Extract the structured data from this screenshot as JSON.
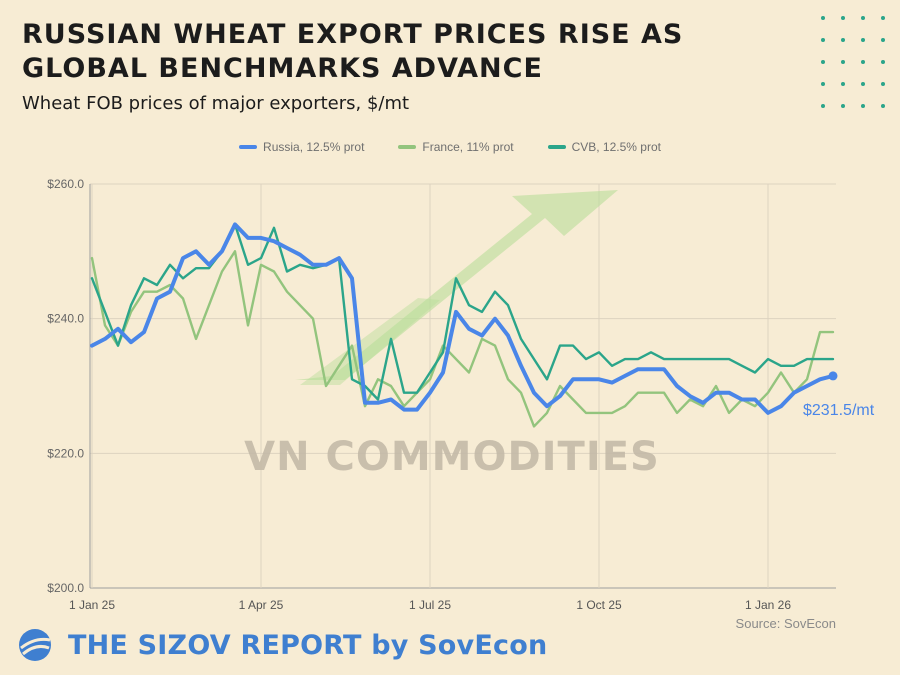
{
  "header": {
    "title": "RUSSIAN WHEAT EXPORT PRICES RISE AS GLOBAL BENCHMARKS ADVANCE",
    "subtitle": "Wheat FOB prices of major exporters, $/mt"
  },
  "watermark": "VN COMMODITIES",
  "source": "Source: SovEcon",
  "footer": {
    "brand": "THE SIZOV REPORT by SovEcon",
    "logo_icon": "globe-logo-icon"
  },
  "colors": {
    "russia": "#4a86e8",
    "france": "#93c47d",
    "cvb": "#2ba58a",
    "background": "#f7ecd4",
    "arrow": "#b9dd9a"
  },
  "chart_data": {
    "type": "line",
    "x_ticks": [
      "1 Jan 25",
      "1 Apr 25",
      "1 Jul 25",
      "1 Oct 25",
      "1 Jan 26"
    ],
    "x_tick_weeks": [
      0,
      13,
      26,
      39,
      52
    ],
    "y_ticks": [
      "$200.0",
      "$220.0",
      "$240.0",
      "$260.0"
    ],
    "y_tick_values": [
      200,
      220,
      240,
      260
    ],
    "ylim": [
      200,
      260
    ],
    "xlim_weeks": [
      0,
      57
    ],
    "grid": true,
    "legend_position": "top-center",
    "annotation": "$231.5/mt",
    "series": [
      {
        "name": "Russia, 12.5% prot",
        "key": "russia",
        "x_weeks": [
          0,
          1,
          2,
          3,
          4,
          5,
          6,
          7,
          8,
          9,
          10,
          11,
          12,
          13,
          14,
          15,
          16,
          17,
          18,
          19,
          20,
          21,
          22,
          23,
          24,
          25,
          26,
          27,
          28,
          29,
          30,
          31,
          32,
          33,
          34,
          35,
          36,
          37,
          38,
          39,
          40,
          41,
          42,
          43,
          44,
          45,
          46,
          47,
          48,
          49,
          50,
          51,
          52,
          53,
          54,
          55,
          56,
          57
        ],
        "values": [
          236,
          237,
          238.5,
          236.5,
          238,
          243,
          244,
          249,
          250,
          248,
          250,
          254,
          252,
          252,
          251.5,
          250.5,
          249.5,
          248,
          248,
          249,
          246,
          227.5,
          227.5,
          228,
          226.5,
          226.5,
          229,
          232,
          241,
          238.5,
          237.5,
          240,
          237.5,
          233,
          229,
          227,
          228.5,
          231,
          231,
          231,
          230.5,
          231.5,
          232.5,
          232.5,
          232.5,
          230,
          228.5,
          227.5,
          229,
          229,
          228,
          228,
          226,
          227,
          229,
          230,
          231,
          231.5
        ]
      },
      {
        "name": "France, 11% prot",
        "key": "france",
        "x_weeks": [
          0,
          1,
          2,
          3,
          4,
          5,
          6,
          7,
          8,
          9,
          10,
          11,
          12,
          13,
          14,
          15,
          16,
          17,
          18,
          19,
          20,
          21,
          22,
          23,
          24,
          25,
          26,
          27,
          28,
          29,
          30,
          31,
          32,
          33,
          34,
          35,
          36,
          37,
          38,
          39,
          40,
          41,
          42,
          43,
          44,
          45,
          46,
          47,
          48,
          49,
          50,
          51,
          52,
          53,
          54,
          55,
          56,
          57
        ],
        "values": [
          249,
          239,
          236,
          241,
          244,
          244,
          245,
          243,
          237,
          242,
          247,
          250,
          239,
          248,
          247,
          244,
          242,
          240,
          230,
          233,
          236,
          227,
          231,
          230,
          227,
          229,
          231,
          236,
          234,
          232,
          237,
          236,
          231,
          229,
          224,
          226,
          230,
          228,
          226,
          226,
          226,
          227,
          229,
          229,
          229,
          226,
          228,
          227,
          230,
          226,
          228,
          227,
          229,
          232,
          229,
          231,
          238,
          238
        ]
      },
      {
        "name": "CVB, 12.5% prot",
        "key": "cvb",
        "x_weeks": [
          0,
          1,
          2,
          3,
          4,
          5,
          6,
          7,
          8,
          9,
          10,
          11,
          12,
          13,
          14,
          15,
          16,
          17,
          18,
          19,
          20,
          21,
          22,
          23,
          24,
          25,
          26,
          27,
          28,
          29,
          30,
          31,
          32,
          33,
          34,
          35,
          36,
          37,
          38,
          39,
          40,
          41,
          42,
          43,
          44,
          45,
          46,
          47,
          48,
          49,
          50,
          51,
          52,
          53,
          54,
          55,
          56,
          57
        ],
        "values": [
          246,
          241,
          236,
          242,
          246,
          245,
          248,
          246,
          247.5,
          247.5,
          250,
          254,
          248,
          249,
          253.5,
          247,
          248,
          247.5,
          248,
          249,
          231,
          230,
          228,
          237,
          229,
          229,
          232,
          235,
          246,
          242,
          241,
          244,
          242,
          237,
          234,
          231,
          236,
          236,
          234,
          235,
          233,
          234,
          234,
          235,
          234,
          234,
          234,
          234,
          234,
          234,
          233,
          232,
          234,
          233,
          233,
          234,
          234,
          234
        ]
      }
    ]
  }
}
